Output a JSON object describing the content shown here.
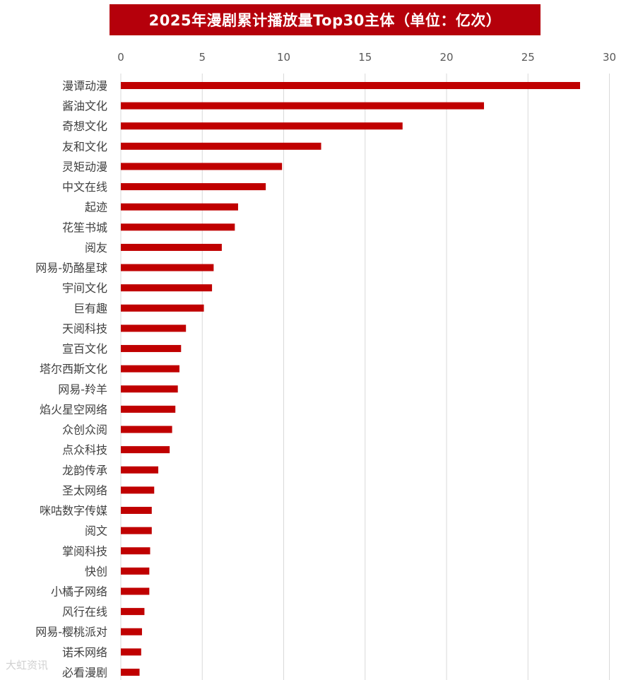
{
  "chart_data": {
    "type": "bar",
    "orientation": "horizontal",
    "title": "2025年漫剧累计播放量Top30主体（单位：亿次）",
    "xlim": [
      0,
      30
    ],
    "xticks": [
      0,
      5,
      10,
      15,
      20,
      25,
      30
    ],
    "grid": true,
    "bar_color": "#c00000",
    "categories": [
      "漫谭动漫",
      "酱油文化",
      "奇想文化",
      "友和文化",
      "灵矩动漫",
      "中文在线",
      "起迹",
      "花笙书城",
      "阅友",
      "网易-奶酪星球",
      "宇间文化",
      "巨有趣",
      "天阅科技",
      "宣百文化",
      "塔尔西斯文化",
      "网易-羚羊",
      "焰火星空网络",
      "众创众阅",
      "点众科技",
      "龙韵传承",
      "圣太网络",
      "咪咕数字传媒",
      "阅文",
      "掌阅科技",
      "快创",
      "小橘子网络",
      "风行在线",
      "网易-樱桃派对",
      "诺禾网络",
      "必看漫剧"
    ],
    "values": [
      28.2,
      22.3,
      17.3,
      12.3,
      9.9,
      8.9,
      7.2,
      7.0,
      6.2,
      5.7,
      5.6,
      5.1,
      4.0,
      3.7,
      3.6,
      3.5,
      3.35,
      3.15,
      3.0,
      2.3,
      2.05,
      1.9,
      1.9,
      1.8,
      1.75,
      1.75,
      1.45,
      1.3,
      1.25,
      1.15
    ]
  },
  "watermark": "大虹资讯"
}
